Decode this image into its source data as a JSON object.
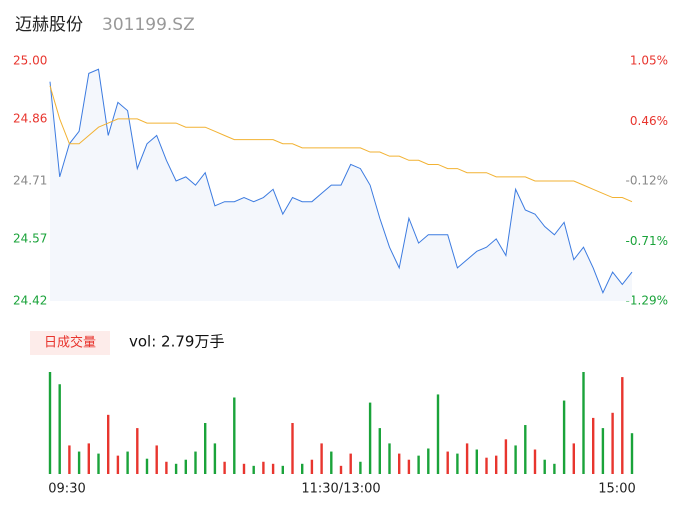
{
  "chart_data": {
    "type": "line",
    "title": "迈赫股份",
    "subtitle": "301199.SZ",
    "x": [
      0,
      4,
      8,
      12,
      16,
      20,
      24,
      28,
      32,
      36,
      40,
      44,
      48,
      52,
      56,
      60,
      64,
      68,
      72,
      76,
      80,
      84,
      88,
      92,
      96,
      100,
      104,
      108,
      112,
      116,
      120,
      124,
      128,
      132,
      136,
      140,
      144,
      148,
      152,
      156,
      160,
      164,
      168,
      172,
      176,
      180,
      184,
      188,
      192,
      196,
      200,
      204,
      208,
      212,
      216,
      220,
      224,
      228,
      232,
      236,
      240
    ],
    "xlim": [
      0,
      240
    ],
    "xticks": [
      {
        "value": 0,
        "label": "09:30"
      },
      {
        "value": 120,
        "label": "11:30/13:00"
      },
      {
        "value": 240,
        "label": "15:00"
      }
    ],
    "ylim": [
      24.42,
      25
    ],
    "yticks": [
      {
        "value": 25,
        "label": "25.00"
      },
      {
        "value": 24.86,
        "label": "24.86"
      },
      {
        "value": 24.71,
        "label": "24.71"
      },
      {
        "value": 24.57,
        "label": "24.57"
      },
      {
        "value": 24.42,
        "label": "24.42"
      }
    ],
    "ytick_colors": [
      "#e8352e",
      "#e8352e",
      "#888888",
      "#1aa33a",
      "#1aa33a"
    ],
    "y2lim": [
      -1.29,
      1.05
    ],
    "y2ticks": [
      {
        "value": 1.05,
        "label": "1.05%"
      },
      {
        "value": 0.46,
        "label": "0.46%"
      },
      {
        "value": -0.12,
        "label": "-0.12%"
      },
      {
        "value": -0.71,
        "label": "-0.71%"
      },
      {
        "value": -1.29,
        "label": "-1.29%"
      }
    ],
    "series": [
      {
        "color": "#3c7be0",
        "values": [
          24.95,
          24.72,
          24.8,
          24.83,
          24.97,
          24.98,
          24.82,
          24.9,
          24.88,
          24.74,
          24.8,
          24.82,
          24.76,
          24.71,
          24.72,
          24.7,
          24.73,
          24.65,
          24.66,
          24.66,
          24.67,
          24.66,
          24.67,
          24.69,
          24.63,
          24.67,
          24.66,
          24.66,
          24.68,
          24.7,
          24.7,
          24.75,
          24.74,
          24.7,
          24.62,
          24.55,
          24.5,
          24.62,
          24.56,
          24.58,
          24.58,
          24.58,
          24.5,
          24.52,
          24.54,
          24.55,
          24.57,
          24.53,
          24.69,
          24.64,
          24.63,
          24.6,
          24.58,
          24.61,
          24.52,
          24.55,
          24.5,
          24.44,
          24.49,
          24.46,
          24.49
        ]
      },
      {
        "color": "#f2b233",
        "values": [
          24.94,
          24.86,
          24.8,
          24.8,
          24.82,
          24.84,
          24.85,
          24.86,
          24.86,
          24.86,
          24.85,
          24.85,
          24.85,
          24.85,
          24.84,
          24.84,
          24.84,
          24.83,
          24.82,
          24.81,
          24.81,
          24.81,
          24.81,
          24.81,
          24.8,
          24.8,
          24.79,
          24.79,
          24.79,
          24.79,
          24.79,
          24.79,
          24.79,
          24.78,
          24.78,
          24.77,
          24.77,
          24.76,
          24.76,
          24.75,
          24.75,
          24.74,
          24.74,
          24.73,
          24.73,
          24.73,
          24.72,
          24.72,
          24.72,
          24.72,
          24.71,
          24.71,
          24.71,
          24.71,
          24.71,
          24.7,
          24.69,
          24.68,
          24.67,
          24.67,
          24.66
        ]
      }
    ],
    "volume": {
      "label": "日成交量",
      "text": "vol: 2.79万手",
      "values": [
        100,
        88,
        28,
        22,
        30,
        20,
        58,
        18,
        22,
        45,
        15,
        28,
        12,
        10,
        14,
        22,
        50,
        30,
        12,
        75,
        10,
        8,
        12,
        10,
        8,
        50,
        10,
        14,
        30,
        22,
        8,
        20,
        12,
        70,
        45,
        30,
        20,
        14,
        18,
        25,
        78,
        22,
        20,
        30,
        24,
        16,
        18,
        34,
        28,
        48,
        24,
        14,
        10,
        72,
        30,
        100,
        55,
        45,
        60,
        95,
        40
      ],
      "colors": [
        "#1aa33a",
        "#1aa33a",
        "#e8352e",
        "#1aa33a",
        "#e8352e",
        "#1aa33a",
        "#e8352e",
        "#e8352e",
        "#1aa33a",
        "#e8352e",
        "#1aa33a",
        "#e8352e",
        "#e8352e",
        "#1aa33a",
        "#1aa33a",
        "#1aa33a",
        "#1aa33a",
        "#1aa33a",
        "#e8352e",
        "#1aa33a",
        "#e8352e",
        "#1aa33a",
        "#e8352e",
        "#e8352e",
        "#1aa33a",
        "#e8352e",
        "#1aa33a",
        "#e8352e",
        "#e8352e",
        "#1aa33a",
        "#e8352e",
        "#e8352e",
        "#1aa33a",
        "#1aa33a",
        "#1aa33a",
        "#1aa33a",
        "#e8352e",
        "#e8352e",
        "#1aa33a",
        "#1aa33a",
        "#1aa33a",
        "#e8352e",
        "#1aa33a",
        "#e8352e",
        "#1aa33a",
        "#e8352e",
        "#e8352e",
        "#e8352e",
        "#1aa33a",
        "#1aa33a",
        "#e8352e",
        "#1aa33a",
        "#1aa33a",
        "#1aa33a",
        "#e8352e",
        "#1aa33a",
        "#e8352e",
        "#1aa33a",
        "#e8352e",
        "#e8352e",
        "#1aa33a"
      ]
    }
  }
}
